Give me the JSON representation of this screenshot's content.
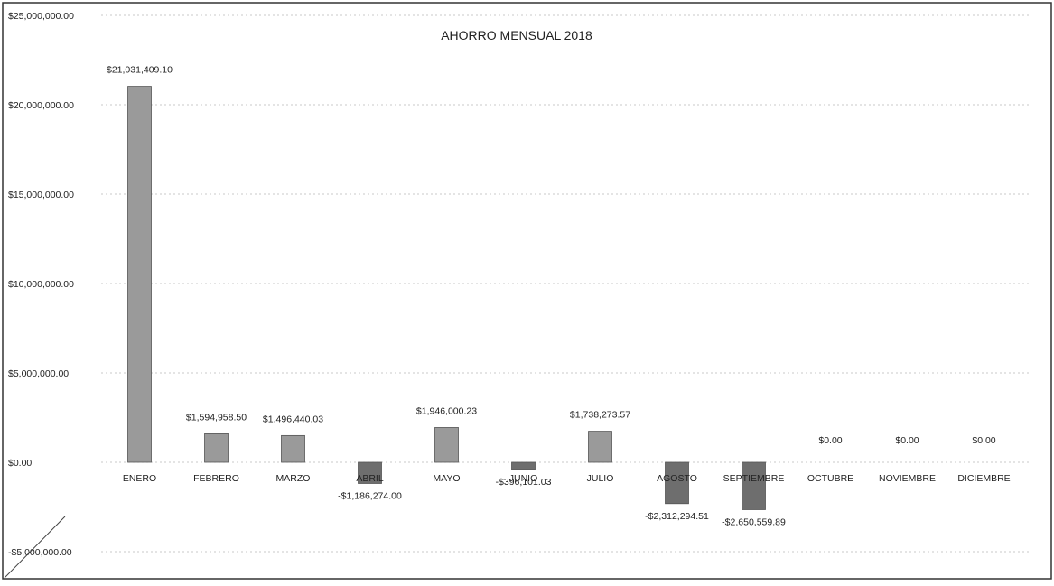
{
  "chart_data": {
    "type": "bar",
    "title": "AHORRO MENSUAL 2018",
    "categories": [
      "ENERO",
      "FEBRERO",
      "MARZO",
      "ABRIL",
      "MAYO",
      "JUNIO",
      "JULIO",
      "AGOSTO",
      "SEPTIEMBRE",
      "OCTUBRE",
      "NOVIEMBRE",
      "DICIEMBRE"
    ],
    "values": [
      21031409.1,
      1594958.5,
      1496440.03,
      -1186274.0,
      1946000.23,
      -396101.03,
      1738273.57,
      -2312294.51,
      -2650559.89,
      0,
      0,
      0
    ],
    "data_labels": [
      "$21,031,409.10",
      "$1,594,958.50",
      "$1,496,440.03",
      "-$1,186,274.00",
      "$1,946,000.23",
      "-$396,101.03",
      "$1,738,273.57",
      "-$2,312,294.51",
      "-$2,650,559.89",
      "$0.00",
      "$0.00",
      "$0.00"
    ],
    "y_ticks": [
      -5000000,
      0,
      5000000,
      10000000,
      15000000,
      20000000,
      25000000
    ],
    "y_tick_labels": [
      "-$5,000,000.00",
      "$0.00",
      "$5,000,000.00",
      "$10,000,000.00",
      "$15,000,000.00",
      "$20,000,000.00",
      "$25,000,000.00"
    ],
    "ylim": [
      -5000000,
      25000000
    ],
    "xlabel": "",
    "ylabel": "",
    "grid": true,
    "legend": false,
    "colors": {
      "bar_fill": "#9a9a9a",
      "bar_fill_dark": "#6e6e6e",
      "bar_stroke": "#555555",
      "grid": "#c9c9c9",
      "text": "#222222",
      "border": "#333333"
    }
  }
}
